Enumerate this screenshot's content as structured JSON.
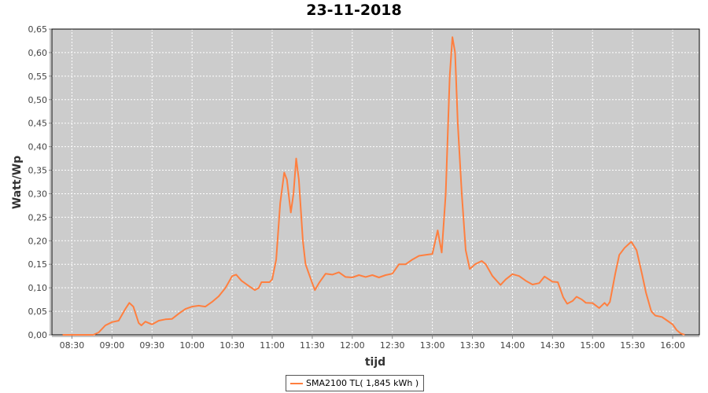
{
  "chart_data": {
    "type": "line",
    "title": "23-11-2018",
    "xlabel": "tijd",
    "ylabel": "Watt/Wp",
    "xlim": [
      "08:15",
      "16:20"
    ],
    "ylim": [
      0,
      0.65
    ],
    "x_ticks": [
      "08:30",
      "09:00",
      "09:30",
      "10:00",
      "10:30",
      "11:00",
      "11:30",
      "12:00",
      "12:30",
      "13:00",
      "13:30",
      "14:00",
      "14:30",
      "15:00",
      "15:30",
      "16:00"
    ],
    "y_ticks": [
      "0,00",
      "0,05",
      "0,10",
      "0,15",
      "0,20",
      "0,25",
      "0,30",
      "0,35",
      "0,40",
      "0,45",
      "0,50",
      "0,55",
      "0,60",
      "0,65"
    ],
    "grid": true,
    "legend_position": "bottom",
    "background": "#cccccc",
    "series": [
      {
        "name": "SMA2100 TL( 1,845 kWh )",
        "color": "#ff7f3f",
        "x": [
          "08:23",
          "08:30",
          "08:40",
          "08:46",
          "08:50",
          "08:55",
          "09:00",
          "09:05",
          "09:10",
          "09:13",
          "09:16",
          "09:20",
          "09:22",
          "09:25",
          "09:30",
          "09:35",
          "09:40",
          "09:45",
          "09:50",
          "09:55",
          "10:00",
          "10:05",
          "10:10",
          "10:15",
          "10:20",
          "10:25",
          "10:30",
          "10:33",
          "10:37",
          "10:42",
          "10:47",
          "10:50",
          "10:52",
          "10:58",
          "11:00",
          "11:03",
          "11:06",
          "11:09",
          "11:11",
          "11:14",
          "11:16",
          "11:18",
          "11:20",
          "11:23",
          "11:25",
          "11:30",
          "11:32",
          "11:35",
          "11:40",
          "11:45",
          "11:50",
          "11:55",
          "12:00",
          "12:05",
          "12:10",
          "12:15",
          "12:20",
          "12:25",
          "12:30",
          "12:35",
          "12:40",
          "12:45",
          "12:50",
          "12:55",
          "13:00",
          "13:04",
          "13:07",
          "13:10",
          "13:13",
          "13:15",
          "13:17",
          "13:19",
          "13:22",
          "13:25",
          "13:28",
          "13:32",
          "13:37",
          "13:40",
          "13:45",
          "13:51",
          "13:55",
          "14:00",
          "14:05",
          "14:10",
          "14:15",
          "14:20",
          "14:24",
          "14:30",
          "14:34",
          "14:38",
          "14:41",
          "14:45",
          "14:48",
          "14:52",
          "14:55",
          "15:00",
          "15:05",
          "15:09",
          "15:11",
          "15:13",
          "15:17",
          "15:20",
          "15:24",
          "15:29",
          "15:33",
          "15:37",
          "15:40",
          "15:44",
          "15:47",
          "15:52",
          "15:56",
          "16:00",
          "16:03",
          "16:06",
          "16:09"
        ],
        "y": [
          0,
          0,
          0,
          0,
          0.005,
          0.02,
          0.027,
          0.03,
          0.055,
          0.068,
          0.06,
          0.025,
          0.02,
          0.028,
          0.022,
          0.03,
          0.033,
          0.034,
          0.045,
          0.055,
          0.06,
          0.062,
          0.06,
          0.07,
          0.082,
          0.1,
          0.125,
          0.128,
          0.115,
          0.105,
          0.095,
          0.1,
          0.112,
          0.112,
          0.118,
          0.16,
          0.28,
          0.345,
          0.33,
          0.26,
          0.3,
          0.375,
          0.33,
          0.2,
          0.15,
          0.11,
          0.095,
          0.11,
          0.13,
          0.128,
          0.133,
          0.123,
          0.122,
          0.127,
          0.123,
          0.127,
          0.122,
          0.127,
          0.13,
          0.15,
          0.15,
          0.16,
          0.168,
          0.17,
          0.172,
          0.222,
          0.175,
          0.3,
          0.55,
          0.633,
          0.6,
          0.45,
          0.3,
          0.18,
          0.14,
          0.15,
          0.157,
          0.15,
          0.125,
          0.106,
          0.118,
          0.129,
          0.125,
          0.115,
          0.107,
          0.11,
          0.124,
          0.113,
          0.112,
          0.08,
          0.066,
          0.072,
          0.081,
          0.075,
          0.068,
          0.0675,
          0.057,
          0.068,
          0.062,
          0.07,
          0.13,
          0.17,
          0.185,
          0.198,
          0.18,
          0.13,
          0.09,
          0.05,
          0.041,
          0.038,
          0.03,
          0.022,
          0.01,
          0.003,
          0
        ]
      }
    ]
  }
}
